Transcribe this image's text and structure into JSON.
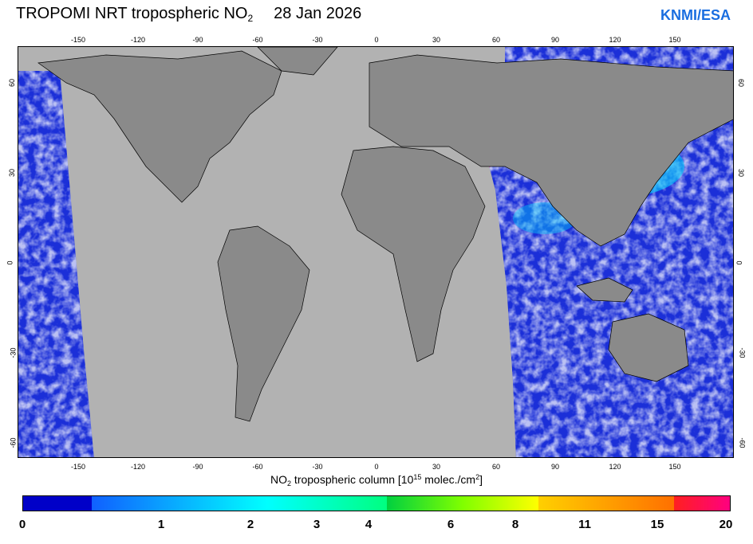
{
  "header": {
    "title_main": "TROPOMI  NRT tropospheric NO",
    "title_sub": "2",
    "date": "28 Jan 2026",
    "org": "KNMI/ESA"
  },
  "map": {
    "lon_ticks": [
      "-150",
      "-120",
      "-90",
      "-60",
      "-30",
      "0",
      "30",
      "60",
      "90",
      "120",
      "150"
    ],
    "lat_ticks": [
      "60",
      "30",
      "0",
      "-30",
      "-60"
    ],
    "colors": {
      "land": "#8a8a8a",
      "no_data": "#b2b2b2",
      "ocean_low": "#1b2fd8",
      "cloud": "#ffffff",
      "border": "#000000"
    }
  },
  "axis": {
    "label_pre": "NO",
    "label_sub": "2",
    "label_mid": " tropospheric column [10",
    "label_sup": "15",
    "label_post": " molec./cm",
    "label_sup2": "2",
    "label_end": "]"
  },
  "colorbar": {
    "labels": [
      "0",
      "1",
      "2",
      "3",
      "4",
      "6",
      "8",
      "11",
      "15",
      "20"
    ],
    "colors": [
      "#0000c8",
      "#1060ff",
      "#00d8ff",
      "#00ff80",
      "#80ff00",
      "#ffff00",
      "#ffc000",
      "#ff7000",
      "#ff0040",
      "#ff0080"
    ]
  }
}
